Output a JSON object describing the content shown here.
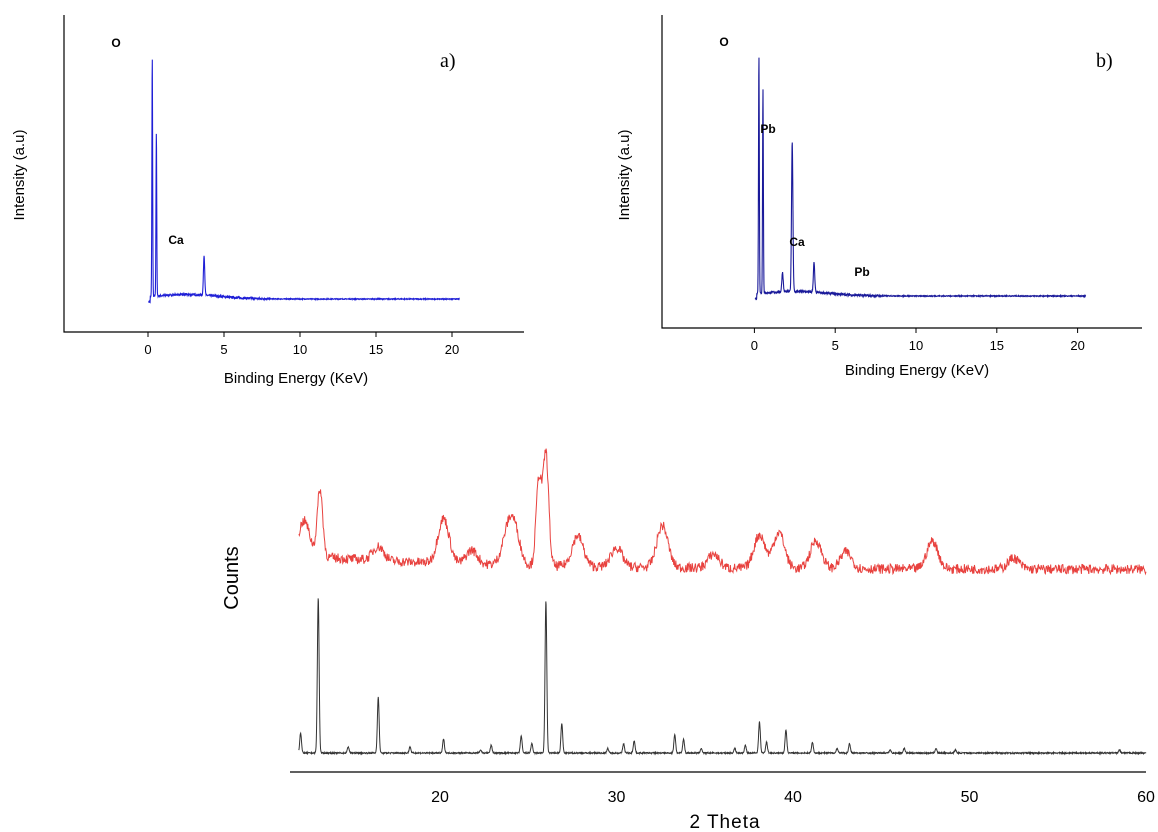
{
  "chart_data": [
    {
      "type": "line",
      "panel_label": "a)",
      "xlabel": "Binding Energy (KeV)",
      "ylabel": "Intensity (a.u)",
      "xlim": [
        -2.5,
        22.5
      ],
      "xticks": [
        0,
        5,
        10,
        15,
        20
      ],
      "color": "#1f1fd6",
      "peaks": [
        {
          "x": 0.28,
          "height": 0.96,
          "label": "O"
        },
        {
          "x": 0.55,
          "height": 0.66,
          "label": ""
        },
        {
          "x": 3.69,
          "height": 0.16,
          "label": "Ca"
        }
      ]
    },
    {
      "type": "line",
      "panel_label": "b)",
      "xlabel": "Binding Energy (KeV)",
      "ylabel": "Intensity (a.u)",
      "xlim": [
        -2.5,
        22.5
      ],
      "xticks": [
        0,
        5,
        10,
        15,
        20
      ],
      "color": "#1a1a9a",
      "peaks": [
        {
          "x": 0.28,
          "height": 0.97,
          "label": "O"
        },
        {
          "x": 0.53,
          "height": 0.83,
          "label": ""
        },
        {
          "x": 1.74,
          "height": 0.08,
          "label": ""
        },
        {
          "x": 2.34,
          "height": 0.61,
          "label": "Pb"
        },
        {
          "x": 3.69,
          "height": 0.12,
          "label": "Ca"
        },
        {
          "x": 7.2,
          "height": 0.0,
          "label": "Pb"
        }
      ]
    },
    {
      "type": "line",
      "xlabel": "2 Theta",
      "ylabel": "Counts",
      "xlim": [
        11.5,
        60
      ],
      "xticks": [
        20,
        30,
        40,
        50,
        60
      ],
      "series": [
        {
          "color": "#e8423f",
          "peaks": [
            {
              "x": 12.3,
              "height": 0.25
            },
            {
              "x": 13.2,
              "height": 0.48
            },
            {
              "x": 16.5,
              "height": 0.1
            },
            {
              "x": 20.2,
              "height": 0.32
            },
            {
              "x": 21.8,
              "height": 0.1
            },
            {
              "x": 23.8,
              "height": 0.18
            },
            {
              "x": 24.2,
              "height": 0.25
            },
            {
              "x": 25.6,
              "height": 0.62
            },
            {
              "x": 26.0,
              "height": 0.8
            },
            {
              "x": 27.8,
              "height": 0.22
            },
            {
              "x": 30.0,
              "height": 0.14
            },
            {
              "x": 32.6,
              "height": 0.3
            },
            {
              "x": 35.5,
              "height": 0.1
            },
            {
              "x": 38.1,
              "height": 0.24
            },
            {
              "x": 39.2,
              "height": 0.26
            },
            {
              "x": 41.3,
              "height": 0.2
            },
            {
              "x": 43.0,
              "height": 0.12
            },
            {
              "x": 47.9,
              "height": 0.2
            },
            {
              "x": 52.5,
              "height": 0.08
            }
          ]
        },
        {
          "color": "#333333",
          "peaks": [
            {
              "x": 12.1,
              "height": 0.13
            },
            {
              "x": 13.1,
              "height": 1.0
            },
            {
              "x": 14.8,
              "height": 0.04
            },
            {
              "x": 16.5,
              "height": 0.36
            },
            {
              "x": 18.3,
              "height": 0.04
            },
            {
              "x": 20.2,
              "height": 0.09
            },
            {
              "x": 22.3,
              "height": 0.02
            },
            {
              "x": 22.9,
              "height": 0.05
            },
            {
              "x": 24.6,
              "height": 0.11
            },
            {
              "x": 25.2,
              "height": 0.06
            },
            {
              "x": 26.0,
              "height": 0.98
            },
            {
              "x": 26.9,
              "height": 0.19
            },
            {
              "x": 29.5,
              "height": 0.03
            },
            {
              "x": 30.4,
              "height": 0.06
            },
            {
              "x": 31.0,
              "height": 0.08
            },
            {
              "x": 33.3,
              "height": 0.12
            },
            {
              "x": 33.8,
              "height": 0.09
            },
            {
              "x": 34.8,
              "height": 0.03
            },
            {
              "x": 36.7,
              "height": 0.03
            },
            {
              "x": 37.3,
              "height": 0.05
            },
            {
              "x": 38.1,
              "height": 0.2
            },
            {
              "x": 38.5,
              "height": 0.07
            },
            {
              "x": 39.6,
              "height": 0.15
            },
            {
              "x": 41.1,
              "height": 0.07
            },
            {
              "x": 42.5,
              "height": 0.03
            },
            {
              "x": 43.2,
              "height": 0.06
            },
            {
              "x": 45.5,
              "height": 0.02
            },
            {
              "x": 46.3,
              "height": 0.03
            },
            {
              "x": 48.1,
              "height": 0.03
            },
            {
              "x": 49.2,
              "height": 0.02
            },
            {
              "x": 58.5,
              "height": 0.02
            }
          ]
        }
      ]
    }
  ]
}
